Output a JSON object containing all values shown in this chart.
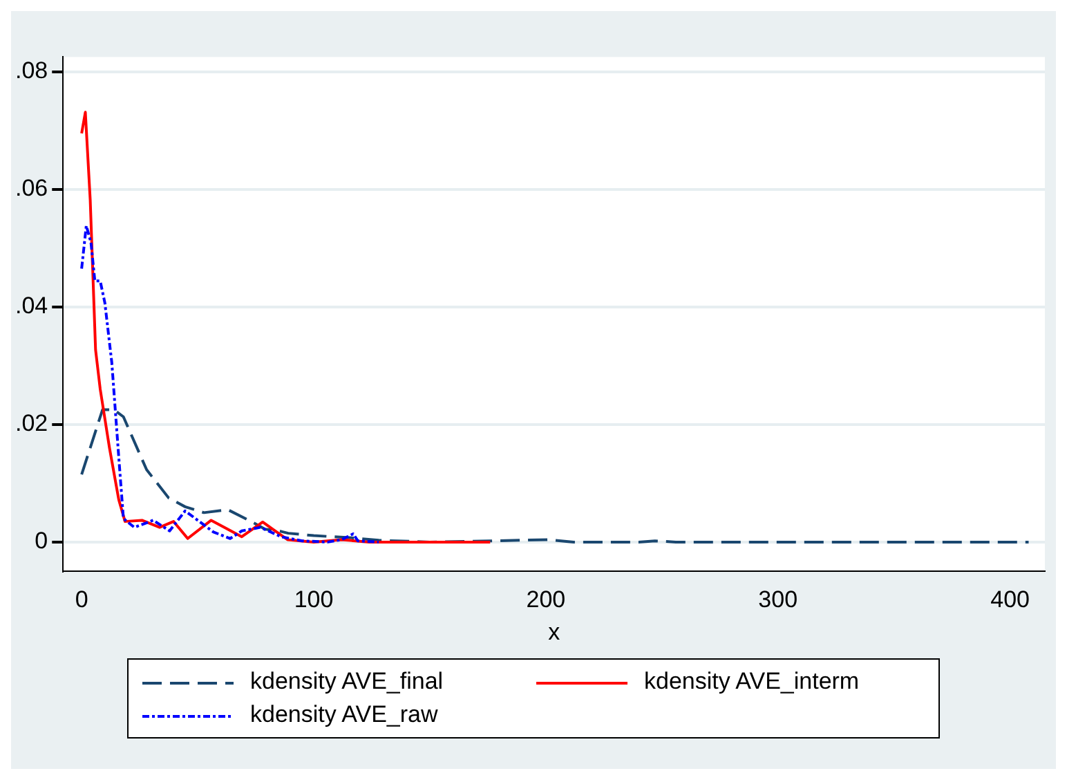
{
  "chart_data": {
    "type": "line",
    "xlabel": "x",
    "xlim": [
      -8,
      415
    ],
    "xticks": [
      0,
      100,
      200,
      300,
      400
    ],
    "ylim": [
      -0.005,
      0.0825
    ],
    "yticks": [
      0,
      {
        "value": 0.02,
        "label": ".02"
      },
      {
        "value": 0.04,
        "label": ".04"
      },
      {
        "value": 0.06,
        "label": ".06"
      },
      {
        "value": 0.08,
        "label": ".08"
      }
    ],
    "grid": "y",
    "legend": "bottom",
    "marker": "none",
    "series": [
      {
        "name": "kdensity AVE_final",
        "color": "#1a476f",
        "line_style": "dashed",
        "x": [
          0,
          9,
          14,
          18,
          28,
          37.5,
          44.6,
          52.7,
          63,
          73,
          79,
          86,
          89,
          100,
          117,
          128,
          150,
          176,
          201,
          212,
          240,
          247,
          256,
          408
        ],
        "values": [
          0.0115,
          0.0225,
          0.0225,
          0.0213,
          0.0123,
          0.0075,
          0.006,
          0.005,
          0.0055,
          0.0035,
          0.0022,
          0.0018,
          0.0015,
          0.0011,
          0.0007,
          0.0003,
          0,
          0.0002,
          0.0004,
          0,
          0,
          0.0002,
          0,
          0
        ]
      },
      {
        "name": "kdensity AVE_interm",
        "color": "#ff0000",
        "line_style": "solid",
        "x": [
          0,
          1.6,
          3.7,
          6,
          8,
          12,
          16,
          18.7,
          26,
          33.6,
          39.6,
          45.7,
          55.8,
          69,
          78,
          88.7,
          100,
          112,
          124,
          176
        ],
        "values": [
          0.0695,
          0.0731,
          0.0582,
          0.0327,
          0.026,
          0.016,
          0.0072,
          0.0035,
          0.0037,
          0.0025,
          0.0035,
          0.0006,
          0.0037,
          0.0009,
          0.0034,
          0.0004,
          0,
          0.0004,
          0,
          0
        ]
      },
      {
        "name": "kdensity AVE_raw",
        "color": "#0000ff",
        "line_style": "dashdot",
        "x": [
          0,
          2,
          4,
          5.7,
          8,
          10,
          13,
          16,
          18,
          22.7,
          30.8,
          37.9,
          44.6,
          56.8,
          64,
          69,
          77,
          86,
          95,
          106,
          112,
          117,
          119,
          128
        ],
        "values": [
          0.0465,
          0.0538,
          0.051,
          0.0444,
          0.0444,
          0.0407,
          0.0305,
          0.0144,
          0.004,
          0.0025,
          0.0037,
          0.0019,
          0.0053,
          0.0017,
          0.0006,
          0.0019,
          0.0025,
          0.0009,
          0.0002,
          0,
          0.0004,
          0.0014,
          0.0002,
          0
        ]
      }
    ]
  }
}
